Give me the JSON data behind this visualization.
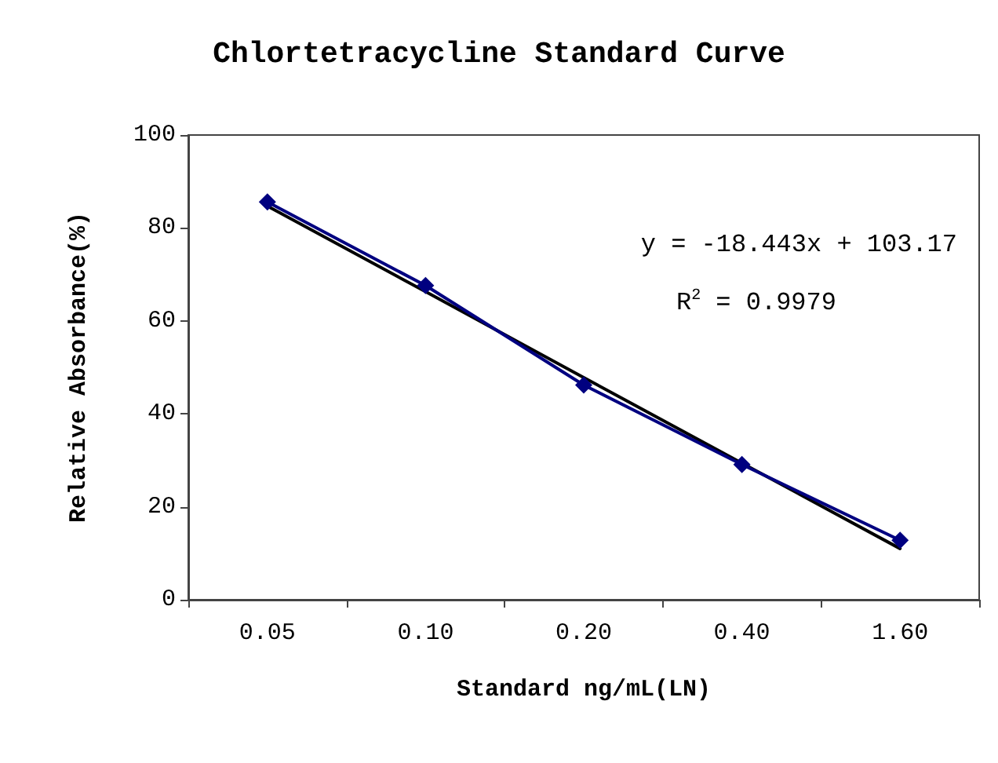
{
  "chart_data": {
    "type": "line",
    "title": "Chlortetracycline Standard Curve",
    "xlabel": "Standard ng/mL(LN)",
    "ylabel": "Relative Absorbance(%)",
    "categories": [
      "0.05",
      "0.10",
      "0.20",
      "0.40",
      "1.60"
    ],
    "series": [
      {
        "color": "#000080",
        "values": [
          85.6,
          67.6,
          46.2,
          29.1,
          12.8
        ],
        "marker": "diamond"
      },
      {
        "type": "line",
        "color": "#000000",
        "values": [
          84.7,
          66.3,
          47.8,
          29.4,
          11.0
        ],
        "marker": "none"
      }
    ],
    "ylim": [
      0,
      100
    ],
    "yticks": [
      0,
      20,
      40,
      60,
      80,
      100
    ],
    "grid": false,
    "annotations": [
      "y = -18.443x + 103.17",
      "R$^{2}$ = 0.9979"
    ]
  }
}
